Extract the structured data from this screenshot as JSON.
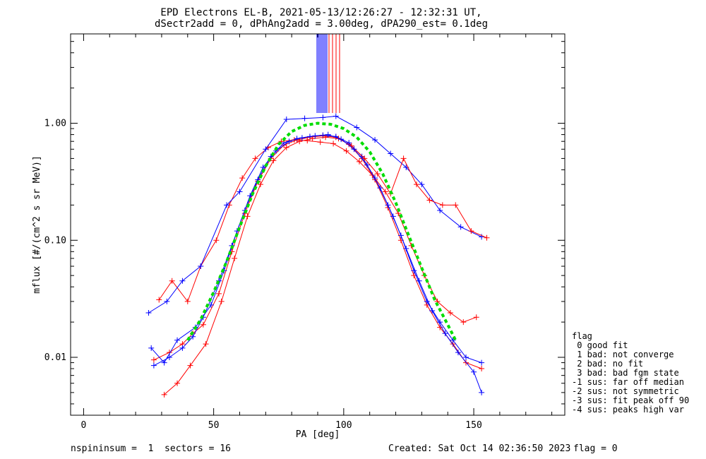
{
  "chart_data": {
    "type": "line",
    "title": "EPD Electrons EL-B, 2021-05-13/12:26:27 - 12:32:31 UT,",
    "subtitle": "dSectr2add = 0, dPhAng2add = 3.00deg, dPA290_est=   0.1deg",
    "xlabel": "PA [deg]",
    "ylabel": "mflux [#/(cm^2 s sr MeV)]",
    "xlim": [
      -5,
      185
    ],
    "ylim": [
      0.0032,
      5.8
    ],
    "yscale": "log",
    "xticks": [
      "0",
      "50",
      "100",
      "150"
    ],
    "yticks": [
      "0.01",
      "0.10",
      "1.00"
    ],
    "series": [
      {
        "color": "#ff0000",
        "marker": "+",
        "x": [
          27,
          33,
          38,
          42,
          46,
          52,
          57,
          62,
          67,
          72,
          77,
          82,
          87,
          92,
          97,
          102,
          107,
          112,
          117,
          122,
          127,
          132,
          137,
          142,
          147,
          153
        ],
        "y": [
          0.0095,
          0.011,
          0.013,
          0.016,
          0.019,
          0.035,
          0.08,
          0.17,
          0.32,
          0.5,
          0.65,
          0.72,
          0.76,
          0.78,
          0.76,
          0.66,
          0.5,
          0.33,
          0.19,
          0.1,
          0.05,
          0.028,
          0.018,
          0.013,
          0.009,
          0.008
        ]
      },
      {
        "color": "#0000ff",
        "marker": "+",
        "x": [
          27,
          33,
          38,
          42,
          46,
          52,
          57,
          62,
          67,
          72,
          77,
          82,
          87,
          92,
          97,
          102,
          107,
          112,
          117,
          122,
          127,
          132,
          137,
          142,
          147,
          153
        ],
        "y": [
          0.0085,
          0.01,
          0.012,
          0.015,
          0.022,
          0.045,
          0.09,
          0.18,
          0.33,
          0.52,
          0.68,
          0.74,
          0.77,
          0.79,
          0.77,
          0.68,
          0.52,
          0.34,
          0.2,
          0.11,
          0.055,
          0.03,
          0.02,
          0.014,
          0.01,
          0.009
        ]
      },
      {
        "color": "#ff0000",
        "marker": "+",
        "x": [
          29,
          34,
          40,
          45,
          51,
          56,
          61,
          66,
          71,
          76,
          81,
          86,
          91,
          96,
          101,
          106,
          111,
          116,
          121,
          126,
          131,
          136,
          141,
          146,
          151
        ],
        "y": [
          0.031,
          0.045,
          0.03,
          0.06,
          0.1,
          0.2,
          0.34,
          0.5,
          0.62,
          0.7,
          0.72,
          0.71,
          0.69,
          0.67,
          0.58,
          0.47,
          0.36,
          0.26,
          0.17,
          0.09,
          0.05,
          0.03,
          0.024,
          0.02,
          0.022
        ]
      },
      {
        "color": "#0000ff",
        "marker": "+",
        "x": [
          25,
          32,
          38,
          45,
          55,
          60,
          70,
          78,
          85,
          92,
          97,
          105,
          112,
          118,
          124,
          130,
          137,
          145,
          153
        ],
        "y": [
          0.024,
          0.03,
          0.045,
          0.06,
          0.2,
          0.26,
          0.6,
          1.08,
          1.1,
          1.12,
          1.15,
          0.92,
          0.72,
          0.55,
          0.42,
          0.3,
          0.18,
          0.13,
          0.107
        ]
      },
      {
        "color": "#ff0000",
        "marker": "+",
        "x": [
          31,
          36,
          41,
          47,
          53,
          58,
          63,
          68,
          73,
          78,
          83,
          88,
          93,
          98,
          103,
          108,
          113,
          118,
          123,
          128,
          133,
          138,
          143,
          149,
          155
        ],
        "y": [
          0.0048,
          0.006,
          0.0085,
          0.013,
          0.03,
          0.07,
          0.16,
          0.3,
          0.48,
          0.62,
          0.7,
          0.74,
          0.76,
          0.74,
          0.64,
          0.5,
          0.37,
          0.25,
          0.5,
          0.3,
          0.22,
          0.2,
          0.2,
          0.12,
          0.105
        ]
      },
      {
        "color": "#0000ff",
        "marker": "+",
        "x": [
          26,
          31,
          36,
          43,
          49,
          54,
          59,
          64,
          69,
          74,
          79,
          84,
          89,
          94,
          99,
          104,
          109,
          114,
          119,
          124,
          129,
          134,
          139,
          144,
          150,
          153
        ],
        "y": [
          0.012,
          0.009,
          0.014,
          0.018,
          0.028,
          0.055,
          0.12,
          0.24,
          0.42,
          0.58,
          0.7,
          0.75,
          0.78,
          0.8,
          0.73,
          0.6,
          0.44,
          0.28,
          0.16,
          0.085,
          0.045,
          0.025,
          0.016,
          0.011,
          0.0075,
          0.005
        ]
      },
      {
        "color": "#00dd00",
        "marker": "",
        "dashed": true,
        "x": [
          40,
          45,
          50,
          55,
          60,
          65,
          70,
          75,
          80,
          85,
          90,
          92,
          95,
          100,
          105,
          110,
          115,
          120,
          125,
          130,
          135,
          140,
          143
        ],
        "y": [
          0.014,
          0.021,
          0.036,
          0.066,
          0.13,
          0.25,
          0.43,
          0.66,
          0.85,
          0.96,
          1.0,
          0.99,
          0.98,
          0.9,
          0.76,
          0.57,
          0.37,
          0.21,
          0.11,
          0.058,
          0.031,
          0.019,
          0.014
        ]
      }
    ]
  },
  "legend": {
    "items": [
      "flag",
      " 0 good fit",
      " 1 bad: not converge",
      " 2 bad: no fit",
      " 3 bad: bad fgm state",
      "-1 sus: far off median",
      "-2 sus: not symmetric",
      "-3 sus: fit peak off 90",
      "-4 sus: peaks high var"
    ]
  },
  "footer": {
    "left": "nspininsum =  1  sectors = 16",
    "created": "Created: Sat Oct 14 02:36:50 2023",
    "flag": "flag = 0"
  }
}
